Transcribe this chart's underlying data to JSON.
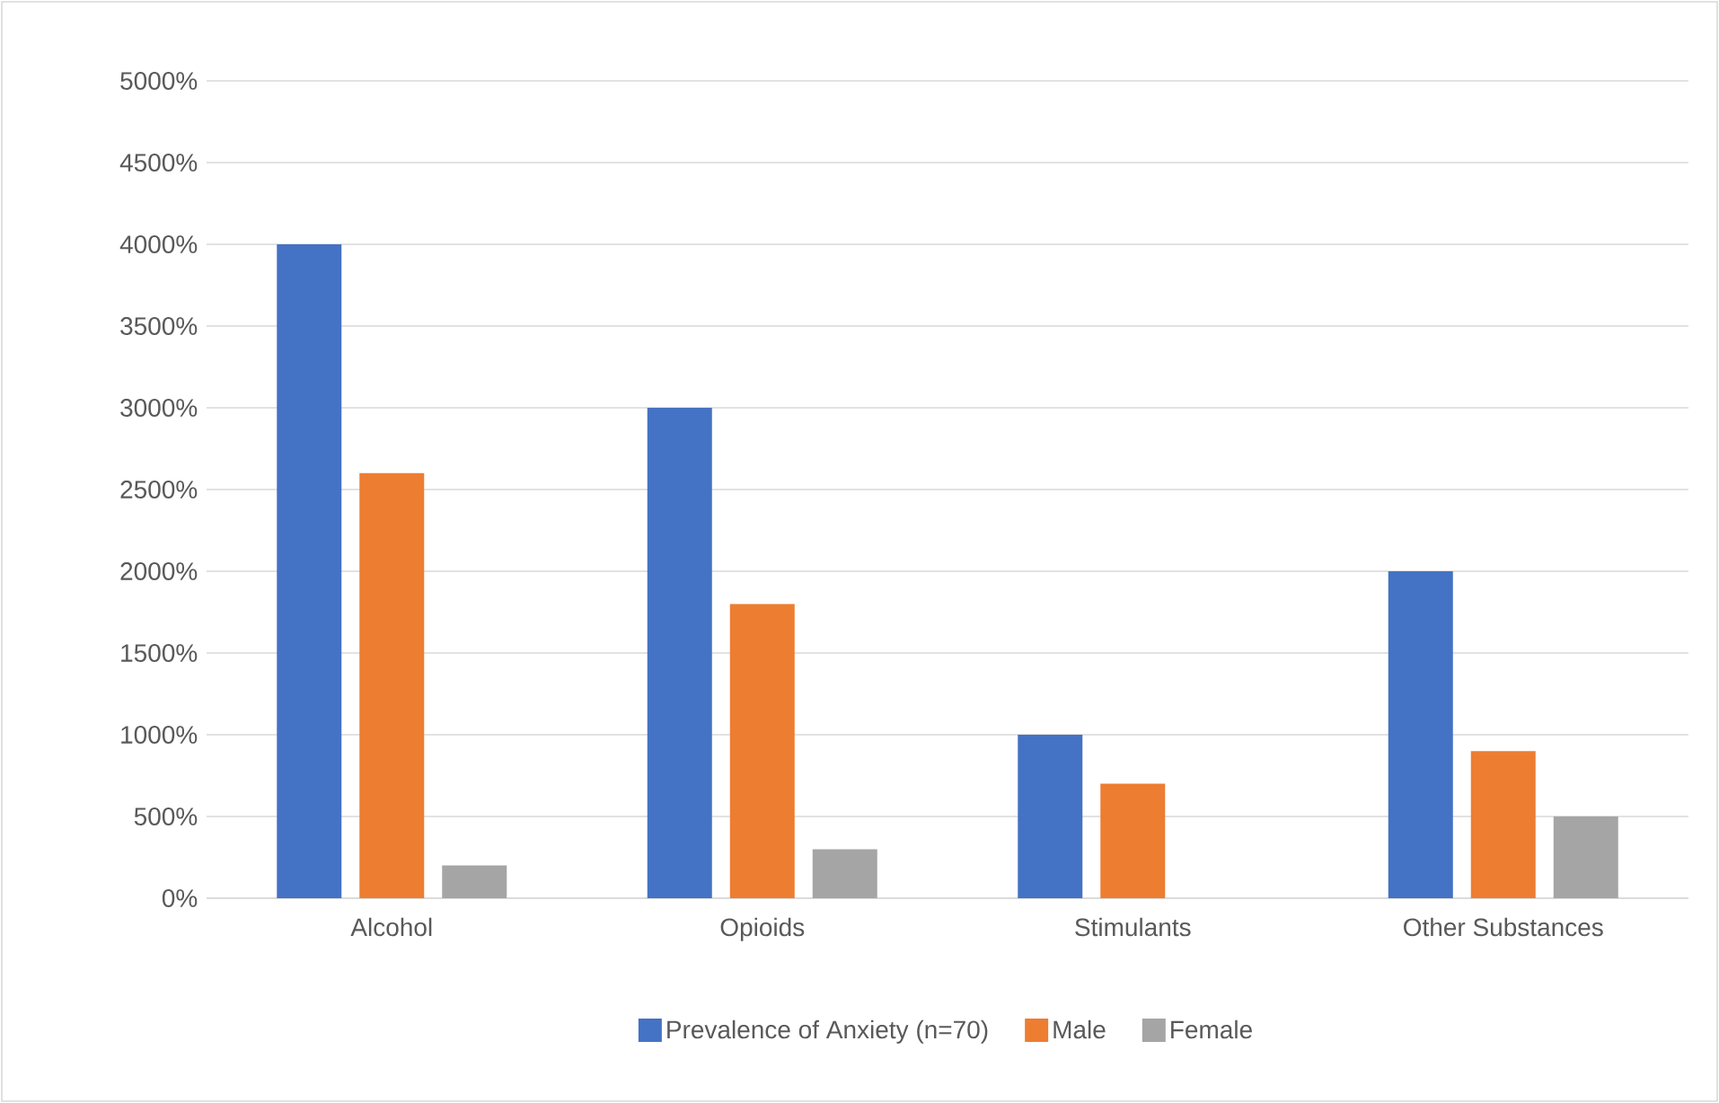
{
  "chart_data": {
    "type": "bar",
    "categories": [
      "Alcohol",
      "Opioids",
      "Stimulants",
      "Other Substances"
    ],
    "series": [
      {
        "name": "Prevalence of Anxiety (n=70)",
        "color": "#4472c4",
        "values": [
          4000,
          3000,
          1000,
          2000
        ]
      },
      {
        "name": "Male",
        "color": "#ed7d31",
        "values": [
          2600,
          1800,
          700,
          900
        ]
      },
      {
        "name": "Female",
        "color": "#a5a5a5",
        "values": [
          200,
          300,
          0,
          500
        ]
      }
    ],
    "ylim": [
      0,
      5000
    ],
    "yticks": [
      {
        "value": 0,
        "label": "0%"
      },
      {
        "value": 500,
        "label": "500%"
      },
      {
        "value": 1000,
        "label": "1000%"
      },
      {
        "value": 1500,
        "label": "1500%"
      },
      {
        "value": 2000,
        "label": "2000%"
      },
      {
        "value": 2500,
        "label": "2500%"
      },
      {
        "value": 3000,
        "label": "3000%"
      },
      {
        "value": 3500,
        "label": "3500%"
      },
      {
        "value": 4000,
        "label": "4000%"
      },
      {
        "value": 4500,
        "label": "4500%"
      },
      {
        "value": 5000,
        "label": "5000%"
      }
    ],
    "grid": "y",
    "legend": "bottom"
  }
}
